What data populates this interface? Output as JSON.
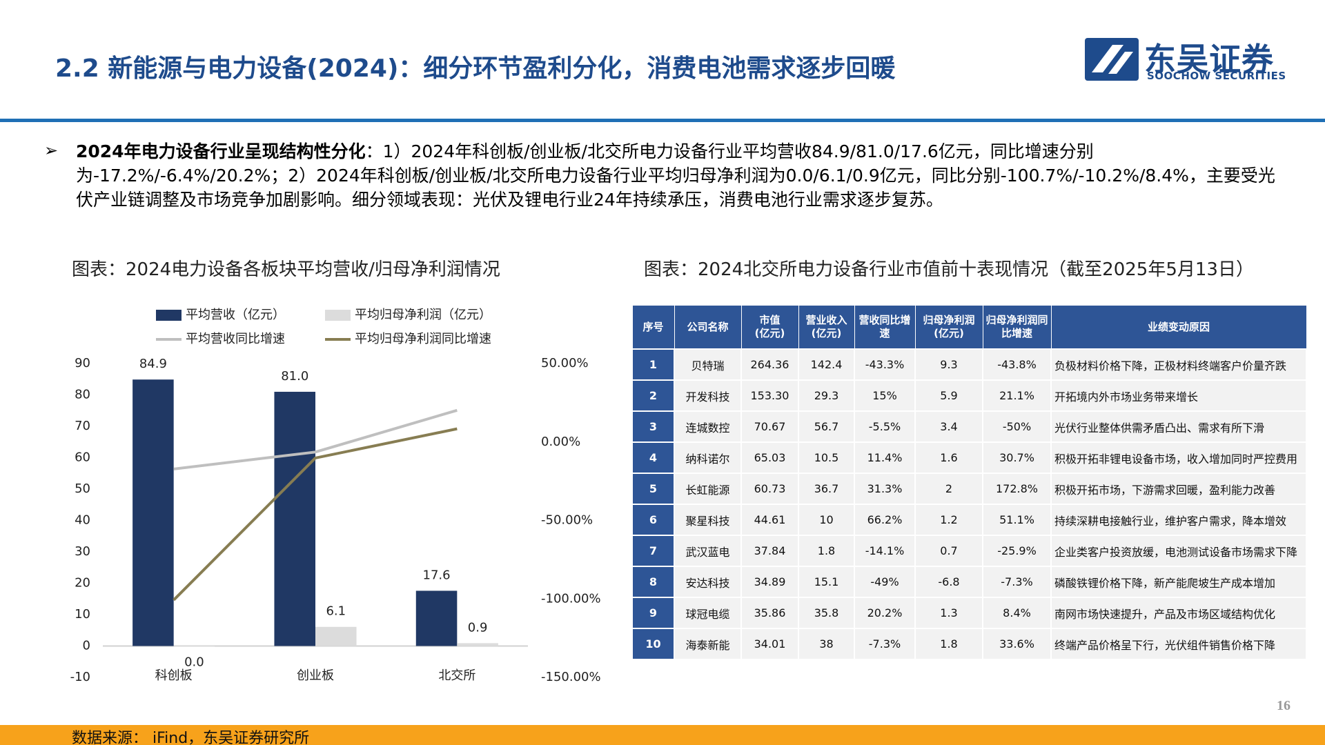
{
  "header": {
    "title": "2.2 新能源与电力设备(2024)：细分环节盈利分化，消费电池需求逐步回暖",
    "logo_cn": "东吴证券",
    "logo_en": "SOOCHOW SECURITIES"
  },
  "bullet": {
    "lead": "2024年电力设备行业呈现结构性分化",
    "text": "：1）2024年科创板/创业板/北交所电力设备行业平均营收84.9/81.0/17.6亿元，同比增速分别为-17.2%/-6.4%/20.2%；2）2024年科创板/创业板/北交所电力设备行业平均归母净利润为0.0/6.1/0.9亿元，同比分别-100.7%/-10.2%/8.4%，主要受光伏产业链调整及市场竞争加剧影响。细分领域表现：光伏及锂电行业24年持续承压，消费电池行业需求逐步复苏。"
  },
  "chart_data": {
    "type": "combo",
    "title": "图表：2024电力设备各板块平均营收/归母净利润情况",
    "categories": [
      "科创板",
      "创业板",
      "北交所"
    ],
    "series": [
      {
        "name": "平均营收（亿元）",
        "type": "bar",
        "color": "#203864",
        "values": [
          84.9,
          81.0,
          17.6
        ],
        "value_labels": [
          "84.9",
          "81.0",
          "17.6"
        ]
      },
      {
        "name": "平均归母净利润（亿元）",
        "type": "bar",
        "color": "#dcdcdc",
        "values": [
          0.0,
          6.1,
          0.9
        ],
        "value_labels": [
          "0.0",
          "6.1",
          "0.9"
        ]
      },
      {
        "name": "平均营收同比增速",
        "type": "line",
        "axis": "y2",
        "color": "#bfbfbf",
        "values": [
          -17.2,
          -6.4,
          20.2
        ]
      },
      {
        "name": "平均归母净利润同比增速",
        "type": "line",
        "axis": "y2",
        "color": "#877d52",
        "values": [
          -100.7,
          -10.2,
          8.4
        ]
      }
    ],
    "ylim": [
      -10,
      90
    ],
    "yticks": [
      -10,
      0,
      10,
      20,
      30,
      40,
      50,
      60,
      70,
      80,
      90
    ],
    "y2lim": [
      -150,
      50
    ],
    "y2ticks": [
      {
        "value": -150,
        "label": "-150.00%"
      },
      {
        "value": -100,
        "label": "-100.00%"
      },
      {
        "value": -50,
        "label": "-50.00%"
      },
      {
        "value": 0,
        "label": "0.00%"
      },
      {
        "value": 50,
        "label": "50.00%"
      }
    ],
    "grid": false,
    "legend": "top"
  },
  "table": {
    "title": "图表：2024北交所电力设备行业市值前十表现情况（截至2025年5月13日）",
    "columns": [
      "序号",
      "公司名称",
      "市值\n(亿元)",
      "营业收入\n(亿元)",
      "营收同比增\n速",
      "归母净利润\n(亿元)",
      "归母净利润同\n比增速",
      "业绩变动原因"
    ],
    "rows": [
      [
        "1",
        "贝特瑞",
        "264.36",
        "142.4",
        "-43.3%",
        "9.3",
        "-43.8%",
        "负极材料价格下降，正极材料终端客户价量齐跌"
      ],
      [
        "2",
        "开发科技",
        "153.30",
        "29.3",
        "15%",
        "5.9",
        "21.1%",
        "开拓境内外市场业务带来增长"
      ],
      [
        "3",
        "连城数控",
        "70.67",
        "56.7",
        "-5.5%",
        "3.4",
        "-50%",
        "光伏行业整体供需矛盾凸出、需求有所下滑"
      ],
      [
        "4",
        "纳科诺尔",
        "65.03",
        "10.5",
        "11.4%",
        "1.6",
        "30.7%",
        "积极开拓非锂电设备市场，收入增加同时严控费用"
      ],
      [
        "5",
        "长虹能源",
        "60.73",
        "36.7",
        "31.3%",
        "2",
        "172.8%",
        "积极开拓市场，下游需求回暖，盈利能力改善"
      ],
      [
        "6",
        "聚星科技",
        "44.61",
        "10",
        "66.2%",
        "1.2",
        "51.1%",
        "持续深耕电接触行业，维护客户需求，降本增效"
      ],
      [
        "7",
        "武汉蓝电",
        "37.84",
        "1.8",
        "-14.1%",
        "0.7",
        "-25.9%",
        "企业类客户投资放缓，电池测试设备市场需求下降"
      ],
      [
        "8",
        "安达科技",
        "34.89",
        "15.1",
        "-49%",
        "-6.8",
        "-7.3%",
        "磷酸铁锂价格下降，新产能爬坡生产成本增加"
      ],
      [
        "9",
        "球冠电缆",
        "35.86",
        "35.8",
        "20.2%",
        "1.3",
        "8.4%",
        "南网市场快速提升，产品及市场区域结构优化"
      ],
      [
        "10",
        "海泰新能",
        "34.01",
        "38",
        "-7.3%",
        "1.8",
        "33.6%",
        "终端产品价格呈下行，光伏组件销售价格下降"
      ]
    ]
  },
  "source": "数据来源： iFind，东吴证券研究所",
  "page_number": "16"
}
